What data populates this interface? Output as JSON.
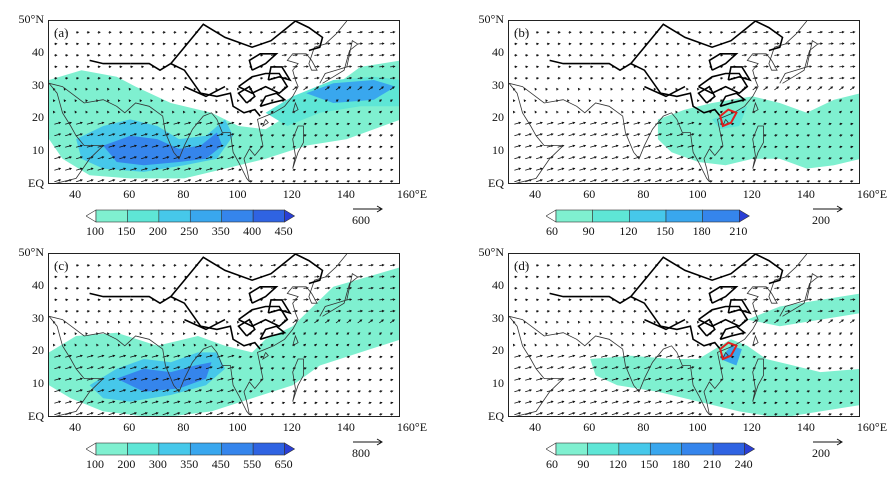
{
  "axes": {
    "lat_labels": [
      "50°N",
      "40",
      "30",
      "20",
      "10",
      "EQ"
    ],
    "lon_labels": [
      "40",
      "60",
      "80",
      "100",
      "120",
      "140",
      "160°E"
    ]
  },
  "panels": [
    {
      "label": "(a)",
      "colorbar_values": [
        "100",
        "150",
        "200",
        "250",
        "350",
        "400",
        "450"
      ],
      "colorbar_colors": [
        "#ffffff",
        "#7ff0d0",
        "#5ee6d6",
        "#46c8ea",
        "#39a7ee",
        "#3585ec",
        "#2f63e2",
        "#2a3fd6"
      ],
      "reference_vector": "600"
    },
    {
      "label": "(b)",
      "colorbar_values": [
        "60",
        "90",
        "120",
        "150",
        "180",
        "210"
      ],
      "colorbar_colors": [
        "#ffffff",
        "#7ff0d0",
        "#5ee6d6",
        "#46c8ea",
        "#39a7ee",
        "#3585ec",
        "#2a3fd6"
      ],
      "reference_vector": "200"
    },
    {
      "label": "(c)",
      "colorbar_values": [
        "100",
        "200",
        "300",
        "350",
        "450",
        "550",
        "650"
      ],
      "colorbar_colors": [
        "#ffffff",
        "#7ff0d0",
        "#5ee6d6",
        "#46c8ea",
        "#39a7ee",
        "#3585ec",
        "#2f63e2",
        "#2a3fd6"
      ],
      "reference_vector": "800"
    },
    {
      "label": "(d)",
      "colorbar_values": [
        "60",
        "90",
        "120",
        "150",
        "180",
        "210",
        "240"
      ],
      "colorbar_colors": [
        "#ffffff",
        "#7ff0d0",
        "#5ee6d6",
        "#46c8ea",
        "#39a7ee",
        "#3585ec",
        "#2f63e2",
        "#2a3fd6"
      ],
      "reference_vector": "200"
    }
  ]
}
